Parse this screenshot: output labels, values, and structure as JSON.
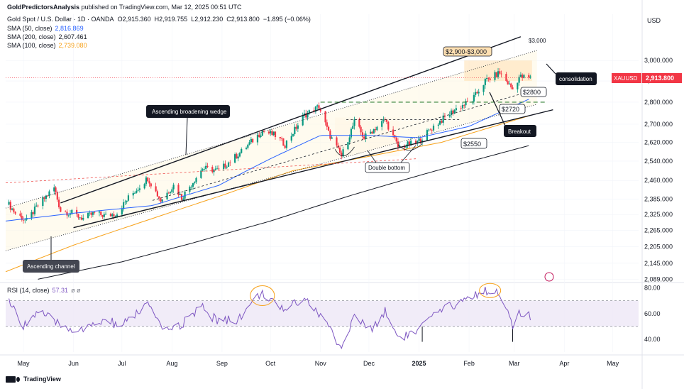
{
  "header": {
    "publisher": "GoldPredictorsAnalysis",
    "published_text": "published on TradingView.com, Mar 12, 2025 00:51 UTC",
    "symbol": "Gold Spot / U.S. Dollar · 1D · OANDA",
    "open": "O2,915.360",
    "high": "H2,919.755",
    "low": "L2,912.230",
    "close": "C2,913.800",
    "change": "−1.895 (−0.06%)"
  },
  "indicators": [
    {
      "label": "SMA (50, close)",
      "value": "2,816.869",
      "color": "#2962ff"
    },
    {
      "label": "SMA (200, close)",
      "value": "2,607.461",
      "color": "#131722"
    },
    {
      "label": "SMA (100, close)",
      "value": "2,739.080",
      "color": "#f7a21b"
    }
  ],
  "rsi_label": "RSI (14, close)",
  "rsi_value": "57.31",
  "rsi_extra": "ø  ø",
  "currency": "USD",
  "last_price_tag": {
    "symbol": "XAUUSD",
    "price": "2,913.800"
  },
  "footer": {
    "brand": "TradingView"
  },
  "colors": {
    "up": "#089981",
    "down": "#f23645",
    "sma50": "#2962ff",
    "sma100": "#f7a21b",
    "sma200": "#131722",
    "rsi": "#7e57c2",
    "rsi_band": "#ede7f6"
  },
  "chart_data": {
    "type": "candlestick",
    "price_axis": {
      "ticks": [
        3000,
        2900,
        2800,
        2700,
        2620,
        2540,
        2460,
        2385,
        2325,
        2265,
        2205,
        2145,
        2089
      ],
      "tick_labels": [
        "3,000.000",
        "2,900.000",
        "2,800.000",
        "2,700.000",
        "2,620.000",
        "2,540.000",
        "2,460.000",
        "2,385.000",
        "2,325.000",
        "2,265.000",
        "2,205.000",
        "2,145.000",
        "2,089.000"
      ],
      "ylim": [
        2085,
        3090
      ],
      "scale": "log"
    },
    "rsi_axis": {
      "ticks": [
        80,
        60,
        40
      ],
      "tick_labels": [
        "80.00",
        "60.00",
        "40.00"
      ],
      "ylim": [
        30,
        82
      ],
      "bands": [
        70,
        50
      ]
    },
    "x_axis": {
      "labels": [
        "May",
        "Jun",
        "Jul",
        "Aug",
        "Sep",
        "Oct",
        "Nov",
        "Dec",
        "2025",
        "Feb",
        "Mar",
        "Apr",
        "May"
      ],
      "label_dates": [
        "2024-05-01",
        "2024-06-01",
        "2024-07-01",
        "2024-08-01",
        "2024-09-01",
        "2024-10-01",
        "2024-11-01",
        "2024-12-01",
        "2025-01-01",
        "2025-02-01",
        "2025-03-01",
        "2025-04-01",
        "2025-05-01"
      ],
      "xlim": [
        "2024-04-20",
        "2025-05-17"
      ]
    },
    "price_anchors": [
      [
        "2024-04-20",
        2380
      ],
      [
        "2024-04-26",
        2330
      ],
      [
        "2024-05-03",
        2300
      ],
      [
        "2024-05-10",
        2360
      ],
      [
        "2024-05-20",
        2430
      ],
      [
        "2024-05-24",
        2340
      ],
      [
        "2024-05-31",
        2330
      ],
      [
        "2024-06-07",
        2310
      ],
      [
        "2024-06-14",
        2330
      ],
      [
        "2024-06-21",
        2320
      ],
      [
        "2024-06-28",
        2330
      ],
      [
        "2024-07-05",
        2390
      ],
      [
        "2024-07-17",
        2470
      ],
      [
        "2024-07-25",
        2380
      ],
      [
        "2024-08-02",
        2440
      ],
      [
        "2024-08-07",
        2390
      ],
      [
        "2024-08-20",
        2510
      ],
      [
        "2024-08-30",
        2500
      ],
      [
        "2024-09-13",
        2580
      ],
      [
        "2024-09-26",
        2670
      ],
      [
        "2024-10-04",
        2650
      ],
      [
        "2024-10-10",
        2610
      ],
      [
        "2024-10-22",
        2740
      ],
      [
        "2024-10-31",
        2780
      ],
      [
        "2024-11-06",
        2660
      ],
      [
        "2024-11-14",
        2560
      ],
      [
        "2024-11-22",
        2710
      ],
      [
        "2024-11-28",
        2640
      ],
      [
        "2024-12-11",
        2720
      ],
      [
        "2024-12-19",
        2600
      ],
      [
        "2024-12-31",
        2620
      ],
      [
        "2025-01-10",
        2690
      ],
      [
        "2025-01-24",
        2770
      ],
      [
        "2025-02-03",
        2810
      ],
      [
        "2025-02-11",
        2900
      ],
      [
        "2025-02-20",
        2940
      ],
      [
        "2025-02-28",
        2860
      ],
      [
        "2025-03-04",
        2920
      ],
      [
        "2025-03-11",
        2913.8
      ]
    ],
    "rsi_anchors": [
      [
        "2024-04-20",
        75
      ],
      [
        "2024-04-30",
        50
      ],
      [
        "2024-05-10",
        62
      ],
      [
        "2024-05-22",
        52
      ],
      [
        "2024-05-31",
        48
      ],
      [
        "2024-06-10",
        48
      ],
      [
        "2024-06-20",
        55
      ],
      [
        "2024-07-01",
        50
      ],
      [
        "2024-07-17",
        68
      ],
      [
        "2024-07-25",
        48
      ],
      [
        "2024-08-05",
        50
      ],
      [
        "2024-08-20",
        65
      ],
      [
        "2024-08-28",
        55
      ],
      [
        "2024-09-10",
        55
      ],
      [
        "2024-09-26",
        77
      ],
      [
        "2024-10-07",
        62
      ],
      [
        "2024-10-22",
        73
      ],
      [
        "2024-11-06",
        50
      ],
      [
        "2024-11-14",
        33
      ],
      [
        "2024-11-22",
        58
      ],
      [
        "2024-12-02",
        47
      ],
      [
        "2024-12-11",
        62
      ],
      [
        "2024-12-19",
        42
      ],
      [
        "2024-12-30",
        45
      ],
      [
        "2025-01-10",
        58
      ],
      [
        "2025-01-24",
        68
      ],
      [
        "2025-02-11",
        78
      ],
      [
        "2025-02-20",
        77
      ],
      [
        "2025-02-28",
        49
      ],
      [
        "2025-03-04",
        60
      ],
      [
        "2025-03-11",
        57.31
      ]
    ],
    "sma50": [
      [
        "2024-04-20",
        2300
      ],
      [
        "2024-06-01",
        2330
      ],
      [
        "2024-07-20",
        2360
      ],
      [
        "2024-08-30",
        2440
      ],
      [
        "2024-10-01",
        2550
      ],
      [
        "2024-11-01",
        2650
      ],
      [
        "2024-12-01",
        2650
      ],
      [
        "2025-01-01",
        2640
      ],
      [
        "2025-02-01",
        2690
      ],
      [
        "2025-03-11",
        2816.869
      ]
    ],
    "sma100": [
      [
        "2024-04-20",
        2115
      ],
      [
        "2024-06-01",
        2210
      ],
      [
        "2024-07-20",
        2310
      ],
      [
        "2024-09-01",
        2400
      ],
      [
        "2024-10-15",
        2500
      ],
      [
        "2024-12-01",
        2560
      ],
      [
        "2025-01-15",
        2620
      ],
      [
        "2025-03-11",
        2739.08
      ]
    ],
    "sma200": [
      [
        "2024-05-10",
        2089
      ],
      [
        "2024-07-01",
        2150
      ],
      [
        "2024-08-15",
        2220
      ],
      [
        "2024-10-01",
        2300
      ],
      [
        "2024-11-20",
        2400
      ],
      [
        "2025-01-01",
        2480
      ],
      [
        "2025-03-11",
        2607.461
      ]
    ],
    "annotations": {
      "range_box": "$2,900-$3,000",
      "level_3000": "$3,000",
      "level_2800": "$2800",
      "level_2720": "$2720",
      "level_2550": "$2550",
      "breakout": "Breakout",
      "consolidation": "consolidation",
      "wedge": "Ascending broadening wedge",
      "channel": "Ascending channel",
      "double_bottom": "Double bottom"
    }
  }
}
